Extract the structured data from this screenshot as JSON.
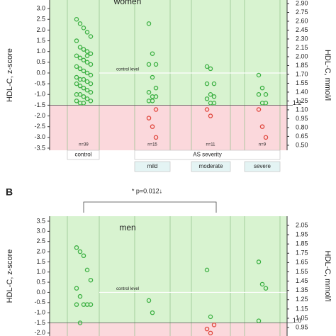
{
  "chart_data": [
    {
      "type": "strip",
      "title": "women",
      "y_label": "HDL-C, z-score",
      "y2_label": "HDL-C, mmol/l",
      "annotations": [
        "control level",
        "1.2"
      ],
      "categories": [
        "control",
        "mild",
        "moderate",
        "severe"
      ],
      "group_label": "AS severity",
      "n_labels": [
        "n=39",
        "n=15",
        "n=11",
        "n=9"
      ],
      "threshold": -1.5,
      "color": "#3cb043",
      "low_color": "#e0463c",
      "groups": [
        {
          "values": [
            2.5,
            2.3,
            2.1,
            1.9,
            1.7,
            1.5,
            1.2,
            1.1,
            1.0,
            0.9,
            0.8,
            0.7,
            0.6,
            0.5,
            0.4,
            0.3,
            0.2,
            0.1,
            0.0,
            -0.1,
            -0.2,
            -0.3,
            -0.3,
            -0.4,
            -0.5,
            -0.5,
            -0.6,
            -0.7,
            -0.8,
            -0.9,
            -1.0,
            -1.0,
            -1.1,
            -1.2,
            -1.3,
            -1.3,
            -1.4,
            -1.4,
            0.8
          ]
        },
        {
          "values": [
            2.3,
            0.9,
            0.4,
            0.4,
            -0.2,
            -0.7,
            -0.9,
            -1.1,
            -1.1,
            -1.3,
            -1.3,
            -1.7,
            -2.1,
            -2.5,
            -3.0
          ]
        },
        {
          "values": [
            0.3,
            0.2,
            -0.5,
            -0.5,
            -1.0,
            -1.1,
            -1.2,
            -1.4,
            -1.4,
            -1.7,
            -2.0
          ]
        },
        {
          "values": [
            -0.1,
            -0.7,
            -1.0,
            -1.0,
            -1.4,
            -1.4,
            -1.7,
            -2.5,
            -3.0
          ]
        }
      ],
      "ylim": [
        -3.6,
        3.4
      ],
      "yticks": [
        {
          "value": 3,
          "label": "3.0"
        },
        2.5,
        {
          "value": 2,
          "label": "2.0"
        },
        1.5,
        {
          "value": 1,
          "label": "1.0"
        },
        0.5,
        {
          "value": 0,
          "label": "0.0"
        },
        -0.5,
        {
          "value": -1,
          "label": "-1.0"
        },
        -1.5,
        {
          "value": -2,
          "label": "-2.0"
        },
        -2.5,
        {
          "value": -3,
          "label": "-3.0"
        },
        -3.5
      ],
      "y2lim": [
        0.415,
        2.96
      ],
      "y2ticks": [
        {
          "value": 2.9,
          "label": "2.90"
        },
        2.75,
        {
          "value": 2.6,
          "label": "2.60"
        },
        2.45,
        {
          "value": 2.3,
          "label": "2.30"
        },
        2.15,
        {
          "value": 2,
          "label": "2.00"
        },
        1.85,
        {
          "value": 1.7,
          "label": "1.70"
        },
        1.55,
        {
          "value": 1.4,
          "label": "1.40"
        },
        1.25,
        {
          "value": 1.1,
          "label": "1.10"
        },
        0.95,
        {
          "value": 0.8,
          "label": "0.80"
        },
        0.65,
        {
          "value": 0.5,
          "label": "0.50"
        }
      ]
    },
    {
      "type": "strip",
      "panel_label": "B",
      "significance": "* p=0.012↓",
      "title": "men",
      "y_label": "HDL-C, z-score",
      "y2_label": "HDL-C, mmol/l",
      "annotations": [
        "control level",
        "1.0"
      ],
      "threshold": -1.5,
      "color": "#3cb043",
      "low_color": "#e0463c",
      "groups": [
        {
          "values": [
            2.2,
            2.0,
            1.8,
            1.1,
            0.6,
            0.2,
            -0.2,
            -0.6,
            -0.6,
            -0.6,
            -0.6,
            -1.5
          ]
        },
        {
          "values": [
            -0.4,
            -1.0
          ]
        },
        {
          "values": [
            1.1,
            -1.2,
            -1.6,
            -1.8,
            -2.0
          ]
        },
        {
          "values": [
            1.5,
            0.4,
            0.2,
            -1.4
          ]
        }
      ],
      "ylim": [
        -2.145,
        3.744
      ],
      "yticks": [
        3.5,
        {
          "value": 3,
          "label": "3.0"
        },
        2.5,
        {
          "value": 2,
          "label": "2.0"
        },
        1.5,
        {
          "value": 1,
          "label": "1.0"
        },
        0.5,
        {
          "value": 0,
          "label": "0.0"
        },
        -0.5,
        {
          "value": -1,
          "label": "-1.0"
        },
        -1.5,
        {
          "value": -2,
          "label": "-2.0"
        }
      ],
      "y2lim": [
        0.859,
        2.149
      ],
      "y2ticks": [
        2.05,
        1.95,
        1.85,
        1.75,
        1.65,
        1.55,
        1.45,
        1.35,
        1.25,
        1.15,
        1.05,
        0.95
      ]
    }
  ]
}
